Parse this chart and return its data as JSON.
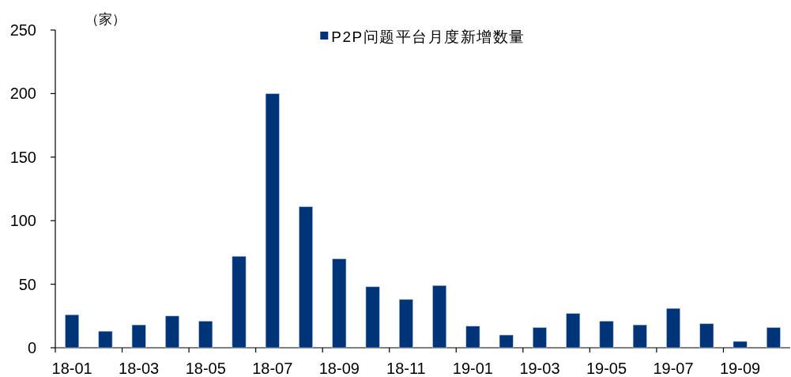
{
  "chart_data": {
    "type": "bar",
    "ylabel": "（家）",
    "categories": [
      "18-01",
      null,
      "18-03",
      null,
      "18-05",
      null,
      "18-07",
      null,
      "18-09",
      null,
      "18-11",
      null,
      "19-01",
      null,
      "19-03",
      null,
      "19-05",
      null,
      "19-07",
      null,
      "19-09",
      null
    ],
    "series": [
      {
        "name": "P2P问题平台月度新增数量",
        "color": "#003478",
        "values": [
          26,
          13,
          18,
          25,
          21,
          72,
          200,
          111,
          70,
          48,
          38,
          49,
          17,
          10,
          16,
          27,
          21,
          18,
          31,
          19,
          5,
          16
        ]
      }
    ],
    "ylim": [
      0,
      250
    ],
    "yticks": [
      0,
      50,
      100,
      150,
      200,
      250
    ],
    "legend": "top"
  }
}
